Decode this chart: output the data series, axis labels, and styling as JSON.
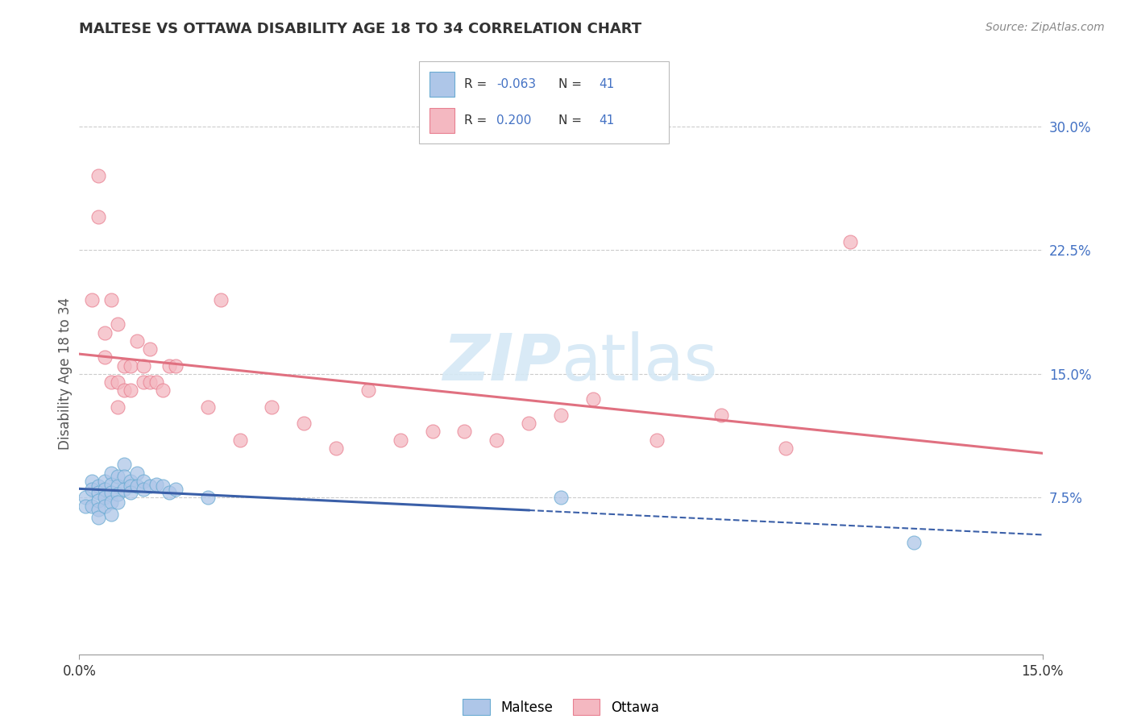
{
  "title": "MALTESE VS OTTAWA DISABILITY AGE 18 TO 34 CORRELATION CHART",
  "source": "Source: ZipAtlas.com",
  "ylabel": "Disability Age 18 to 34",
  "xlim": [
    0.0,
    0.15
  ],
  "ylim": [
    -0.02,
    0.32
  ],
  "ytick_vals_right": [
    0.075,
    0.15,
    0.225,
    0.3
  ],
  "ytick_labels_right": [
    "7.5%",
    "15.0%",
    "22.5%",
    "30.0%"
  ],
  "legend_bottom_colors": [
    "#aec6e8",
    "#f4b8c1"
  ],
  "maltese_color": "#aec6e8",
  "maltese_edge": "#6aabd2",
  "ottawa_color": "#f4b8c1",
  "ottawa_edge": "#e87f90",
  "line_blue": "#3a5fa8",
  "line_pink": "#e07080",
  "watermark_color": "#d5e8f5",
  "grid_color": "#cccccc",
  "maltese_x": [
    0.001,
    0.001,
    0.002,
    0.002,
    0.002,
    0.003,
    0.003,
    0.003,
    0.003,
    0.003,
    0.004,
    0.004,
    0.004,
    0.004,
    0.005,
    0.005,
    0.005,
    0.005,
    0.005,
    0.006,
    0.006,
    0.006,
    0.006,
    0.007,
    0.007,
    0.007,
    0.008,
    0.008,
    0.008,
    0.009,
    0.009,
    0.01,
    0.01,
    0.011,
    0.012,
    0.013,
    0.014,
    0.015,
    0.02,
    0.075,
    0.13
  ],
  "maltese_y": [
    0.075,
    0.07,
    0.085,
    0.08,
    0.07,
    0.082,
    0.078,
    0.073,
    0.068,
    0.063,
    0.085,
    0.08,
    0.075,
    0.07,
    0.09,
    0.083,
    0.078,
    0.072,
    0.065,
    0.088,
    0.082,
    0.077,
    0.072,
    0.095,
    0.088,
    0.08,
    0.085,
    0.082,
    0.078,
    0.09,
    0.082,
    0.085,
    0.08,
    0.082,
    0.083,
    0.082,
    0.078,
    0.08,
    0.075,
    0.075,
    0.048
  ],
  "ottawa_x": [
    0.002,
    0.003,
    0.003,
    0.004,
    0.004,
    0.005,
    0.005,
    0.006,
    0.006,
    0.006,
    0.007,
    0.007,
    0.008,
    0.008,
    0.009,
    0.01,
    0.01,
    0.011,
    0.011,
    0.012,
    0.013,
    0.014,
    0.015,
    0.02,
    0.022,
    0.025,
    0.03,
    0.035,
    0.04,
    0.045,
    0.05,
    0.055,
    0.06,
    0.065,
    0.07,
    0.075,
    0.08,
    0.09,
    0.1,
    0.11,
    0.12
  ],
  "ottawa_y": [
    0.195,
    0.27,
    0.245,
    0.175,
    0.16,
    0.195,
    0.145,
    0.18,
    0.145,
    0.13,
    0.155,
    0.14,
    0.155,
    0.14,
    0.17,
    0.155,
    0.145,
    0.165,
    0.145,
    0.145,
    0.14,
    0.155,
    0.155,
    0.13,
    0.195,
    0.11,
    0.13,
    0.12,
    0.105,
    0.14,
    0.11,
    0.115,
    0.115,
    0.11,
    0.12,
    0.125,
    0.135,
    0.11,
    0.125,
    0.105,
    0.23
  ],
  "R_maltese": -0.063,
  "R_ottawa": 0.2,
  "N": 41
}
